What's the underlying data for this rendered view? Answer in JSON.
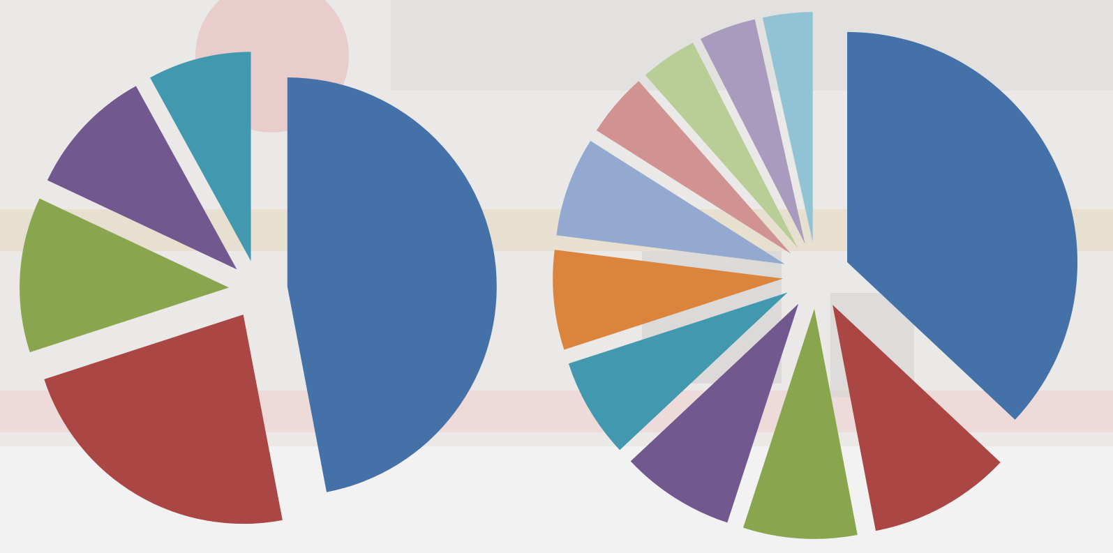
{
  "chart_data": [
    {
      "type": "pie",
      "values": [
        47,
        23,
        12,
        10,
        8
      ],
      "colors": [
        "#4472a8",
        "#aa4643",
        "#89a54e",
        "#71588f",
        "#4198af"
      ]
    },
    {
      "type": "pie",
      "values": [
        37,
        10,
        8,
        8,
        7,
        7,
        7,
        4.5,
        4,
        4,
        3.5
      ],
      "colors": [
        "#4472a8",
        "#aa4643",
        "#89a54e",
        "#71588f",
        "#4198af",
        "#db843d",
        "#93a9cf",
        "#d19392",
        "#b9cd96",
        "#a99bbd",
        "#92c3d4"
      ]
    }
  ]
}
